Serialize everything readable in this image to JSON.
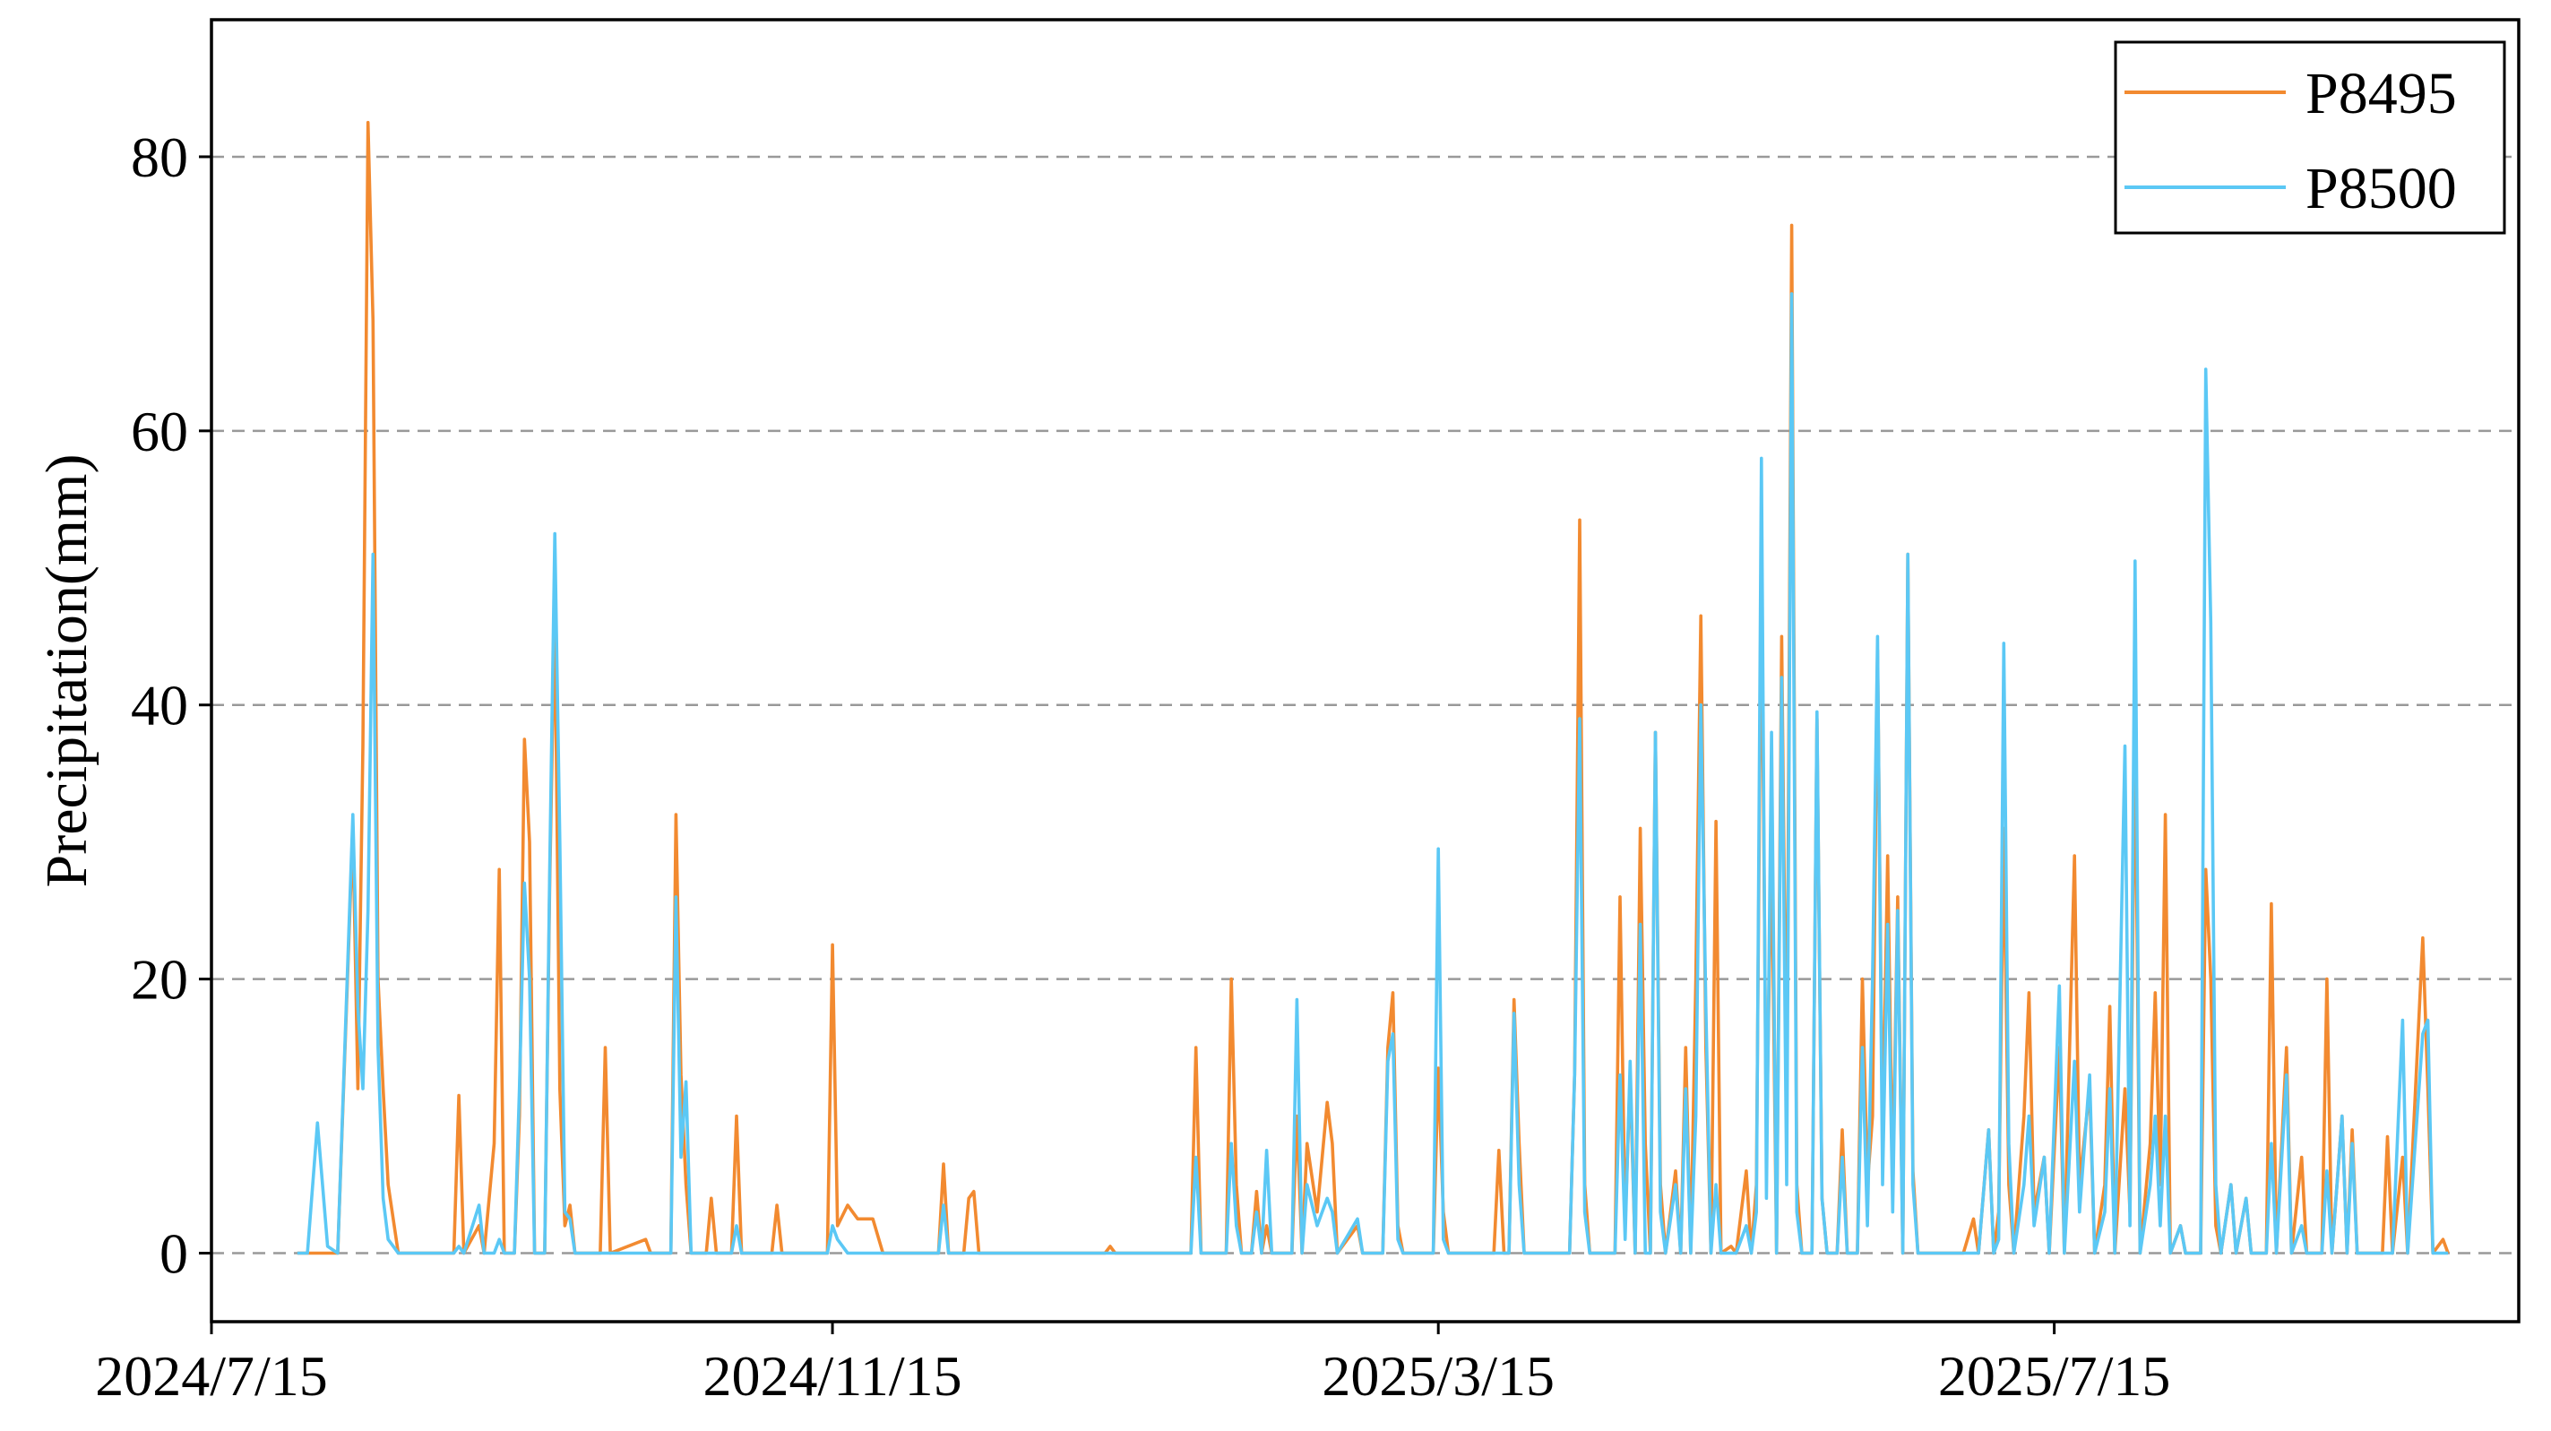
{
  "chart_data": {
    "type": "line",
    "ylabel": "Precipitation(mm)",
    "x": [
      "2024/8/1",
      "2024/8/3",
      "2024/8/5",
      "2024/8/7",
      "2024/8/9",
      "2024/8/12",
      "2024/8/13",
      "2024/8/14",
      "2024/8/15",
      "2024/8/16",
      "2024/8/17",
      "2024/8/18",
      "2024/8/19",
      "2024/8/21",
      "2024/9/1",
      "2024/9/2",
      "2024/9/3",
      "2024/9/6",
      "2024/9/7",
      "2024/9/9",
      "2024/9/10",
      "2024/9/11",
      "2024/9/13",
      "2024/9/14",
      "2024/9/15",
      "2024/9/16",
      "2024/9/17",
      "2024/9/19",
      "2024/9/20",
      "2024/9/21",
      "2024/9/22",
      "2024/9/23",
      "2024/9/24",
      "2024/9/25",
      "2024/9/30",
      "2024/10/1",
      "2024/10/2",
      "2024/10/9",
      "2024/10/10",
      "2024/10/14",
      "2024/10/15",
      "2024/10/16",
      "2024/10/17",
      "2024/10/18",
      "2024/10/21",
      "2024/10/22",
      "2024/10/23",
      "2024/10/26",
      "2024/10/27",
      "2024/10/28",
      "2024/11/3",
      "2024/11/4",
      "2024/11/5",
      "2024/11/14",
      "2024/11/15",
      "2024/11/16",
      "2024/11/18",
      "2024/11/20",
      "2024/11/23",
      "2024/11/25",
      "2024/12/6",
      "2024/12/7",
      "2024/12/8",
      "2024/12/11",
      "2024/12/12",
      "2024/12/13",
      "2024/12/14",
      "2025/1/8",
      "2025/1/9",
      "2025/1/10",
      "2025/1/25",
      "2025/1/26",
      "2025/1/27",
      "2025/2/1",
      "2025/2/2",
      "2025/2/3",
      "2025/2/4",
      "2025/2/6",
      "2025/2/7",
      "2025/2/8",
      "2025/2/9",
      "2025/2/10",
      "2025/2/14",
      "2025/2/15",
      "2025/2/16",
      "2025/2/17",
      "2025/2/19",
      "2025/2/21",
      "2025/2/22",
      "2025/2/23",
      "2025/2/27",
      "2025/2/28",
      "2025/3/4",
      "2025/3/5",
      "2025/3/6",
      "2025/3/7",
      "2025/3/8",
      "2025/3/14",
      "2025/3/15",
      "2025/3/16",
      "2025/3/17",
      "2025/3/26",
      "2025/3/27",
      "2025/3/28",
      "2025/3/29",
      "2025/3/30",
      "2025/3/31",
      "2025/4/1",
      "2025/4/10",
      "2025/4/11",
      "2025/4/12",
      "2025/4/13",
      "2025/4/14",
      "2025/4/19",
      "2025/4/20",
      "2025/4/21",
      "2025/4/22",
      "2025/4/23",
      "2025/4/24",
      "2025/4/25",
      "2025/4/26",
      "2025/4/27",
      "2025/4/28",
      "2025/4/29",
      "2025/5/1",
      "2025/5/2",
      "2025/5/3",
      "2025/5/4",
      "2025/5/5",
      "2025/5/6",
      "2025/5/7",
      "2025/5/8",
      "2025/5/9",
      "2025/5/10",
      "2025/5/12",
      "2025/5/13",
      "2025/5/15",
      "2025/5/16",
      "2025/5/17",
      "2025/5/18",
      "2025/5/19",
      "2025/5/20",
      "2025/5/21",
      "2025/5/22",
      "2025/5/23",
      "2025/5/24",
      "2025/5/25",
      "2025/5/26",
      "2025/5/28",
      "2025/5/29",
      "2025/5/30",
      "2025/5/31",
      "2025/6/2",
      "2025/6/3",
      "2025/6/4",
      "2025/6/6",
      "2025/6/7",
      "2025/6/8",
      "2025/6/9",
      "2025/6/10",
      "2025/6/11",
      "2025/6/12",
      "2025/6/13",
      "2025/6/14",
      "2025/6/15",
      "2025/6/16",
      "2025/6/17",
      "2025/6/18",
      "2025/6/27",
      "2025/6/29",
      "2025/6/30",
      "2025/7/2",
      "2025/7/3",
      "2025/7/4",
      "2025/7/5",
      "2025/7/6",
      "2025/7/7",
      "2025/7/9",
      "2025/7/10",
      "2025/7/11",
      "2025/7/13",
      "2025/7/14",
      "2025/7/16",
      "2025/7/17",
      "2025/7/19",
      "2025/7/20",
      "2025/7/22",
      "2025/7/23",
      "2025/7/25",
      "2025/7/26",
      "2025/7/27",
      "2025/7/29",
      "2025/7/30",
      "2025/7/31",
      "2025/8/1",
      "2025/8/3",
      "2025/8/4",
      "2025/8/5",
      "2025/8/6",
      "2025/8/7",
      "2025/8/9",
      "2025/8/10",
      "2025/8/13",
      "2025/8/14",
      "2025/8/15",
      "2025/8/16",
      "2025/8/17",
      "2025/8/19",
      "2025/8/20",
      "2025/8/22",
      "2025/8/23",
      "2025/8/26",
      "2025/8/27",
      "2025/8/28",
      "2025/8/30",
      "2025/8/31",
      "2025/9/2",
      "2025/9/3",
      "2025/9/6",
      "2025/9/7",
      "2025/9/8",
      "2025/9/10",
      "2025/9/11",
      "2025/9/12",
      "2025/9/13",
      "2025/9/18",
      "2025/9/19",
      "2025/9/20",
      "2025/9/22",
      "2025/9/23",
      "2025/9/26",
      "2025/9/27",
      "2025/9/28",
      "2025/9/30",
      "2025/10/1"
    ],
    "series": [
      {
        "name": "P8495",
        "color": "#f28a30",
        "values": [
          0,
          0,
          0,
          0,
          0,
          31,
          12,
          37,
          82.5,
          68,
          20,
          12,
          5,
          0,
          0,
          11.5,
          0,
          2,
          0,
          8,
          28,
          0,
          0,
          10,
          37.5,
          30,
          0,
          0,
          27,
          47,
          12,
          2,
          3.5,
          0,
          0,
          15,
          0,
          1,
          0,
          0,
          32,
          13,
          5,
          0,
          0,
          4,
          0,
          0,
          10,
          0,
          0,
          3.5,
          0,
          0,
          22.5,
          2,
          3.5,
          2.5,
          2.5,
          0,
          0,
          6.5,
          0,
          0,
          4,
          4.5,
          0,
          0,
          0.5,
          0,
          0,
          15,
          0,
          0,
          20,
          5,
          0,
          0,
          4.5,
          0,
          2,
          0,
          0,
          10,
          0,
          8,
          3,
          11,
          8,
          0,
          2,
          0,
          0,
          15,
          19,
          2,
          0,
          0,
          13.5,
          3,
          0,
          0,
          7.5,
          0,
          0,
          18.5,
          8,
          0,
          0,
          13,
          53.5,
          5,
          0,
          0,
          26,
          2,
          13,
          0,
          31,
          8,
          0,
          38,
          5,
          0,
          6,
          0,
          15,
          0,
          20,
          46.5,
          15,
          0,
          31.5,
          0,
          0.5,
          0,
          6,
          0,
          5,
          50,
          8,
          30,
          0,
          45,
          10,
          75,
          5,
          0,
          0,
          39,
          4,
          0,
          0,
          9,
          0,
          0,
          20,
          5,
          10,
          44,
          8,
          29,
          5,
          26,
          0,
          51,
          6,
          0,
          0,
          2.5,
          0,
          9,
          0,
          3,
          31,
          5,
          0,
          10,
          19,
          3,
          7,
          0,
          15,
          0,
          29,
          5,
          12,
          0,
          5,
          18,
          0,
          12,
          3,
          39,
          0,
          8,
          19,
          5,
          32,
          0,
          2,
          0,
          0,
          28,
          20,
          2,
          0,
          5,
          0,
          4,
          0,
          0,
          25.5,
          0,
          15,
          0,
          7,
          0,
          0,
          20,
          0,
          10,
          0,
          9,
          0,
          0,
          8.5,
          0,
          7,
          0,
          23,
          12,
          0,
          1,
          0
        ]
      },
      {
        "name": "P8500",
        "color": "#5bc8f5",
        "values": [
          0,
          0,
          9.5,
          0.5,
          0,
          32,
          18,
          12,
          25,
          51,
          15,
          4,
          1,
          0,
          0,
          0.5,
          0,
          3.5,
          0,
          0,
          1,
          0,
          0,
          12,
          27,
          20,
          0,
          0,
          28,
          52.5,
          30,
          3,
          2.5,
          0,
          0,
          0,
          0,
          0,
          0,
          0,
          26,
          7,
          12.5,
          0,
          0,
          0,
          0,
          0,
          2,
          0,
          0,
          0,
          0,
          0,
          2,
          1,
          0,
          0,
          0,
          0,
          0,
          3.5,
          0,
          0,
          0,
          0,
          0,
          0,
          0,
          0,
          0,
          7,
          0,
          0,
          8,
          2,
          0,
          0,
          3,
          0,
          7.5,
          0,
          0,
          18.5,
          0,
          5,
          2,
          4,
          3,
          0,
          2.5,
          0,
          0,
          14,
          16,
          1,
          0,
          0,
          29.5,
          1,
          0,
          0,
          0,
          0,
          0,
          17.5,
          5,
          0,
          0,
          13,
          39,
          3,
          0,
          0,
          13,
          1,
          14,
          0,
          24,
          0,
          0,
          38,
          3,
          0,
          5,
          0,
          12,
          0,
          10,
          40,
          18,
          0,
          5,
          0,
          0,
          0,
          2,
          0,
          3,
          58,
          4,
          38,
          0,
          42,
          5,
          70,
          3,
          0,
          0,
          39.5,
          4,
          0,
          0,
          7,
          0,
          0,
          15,
          2,
          20,
          45,
          5,
          24,
          3,
          25,
          0,
          51,
          5,
          0,
          0,
          0,
          0,
          9,
          0,
          1,
          44.5,
          8,
          0,
          5,
          10,
          2,
          7,
          0,
          19.5,
          0,
          14,
          3,
          13,
          0,
          3,
          12,
          0,
          37,
          2,
          50.5,
          0,
          5,
          10,
          2,
          10,
          0,
          2,
          0,
          0,
          64.5,
          46,
          5,
          0,
          5,
          0,
          4,
          0,
          0,
          8,
          0,
          13,
          0,
          2,
          0,
          0,
          6,
          0,
          10,
          0,
          8,
          0,
          0,
          0,
          0,
          17,
          0,
          16,
          17,
          0,
          0,
          0
        ]
      }
    ],
    "xlim": [
      "2024/7/15",
      "2025/10/15"
    ],
    "xticks": [
      "2024/7/15",
      "2024/11/15",
      "2025/3/15",
      "2025/7/15"
    ],
    "ylim": [
      -5,
      90
    ],
    "yticks": [
      0,
      20,
      40,
      60,
      80
    ],
    "grid": true,
    "legend": "upper right"
  }
}
